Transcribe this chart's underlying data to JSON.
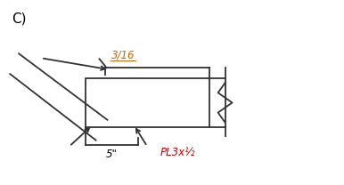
{
  "background_color": "#ffffff",
  "line_color": "#333333",
  "line_width": 1.3,
  "label_C": "C)",
  "label_C_fontsize": 11,
  "label_316": "3/16",
  "label_316_color": "#cc6600",
  "label_pl": "PL3x½",
  "label_pl_color": "#cc0000",
  "label_5in": "5\""
}
